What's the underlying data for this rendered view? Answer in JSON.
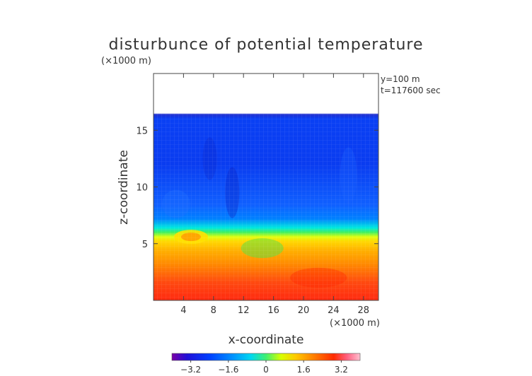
{
  "chart_data": {
    "type": "heatmap",
    "title": "disturbunce of potential temperature",
    "xlabel": "x-coordinate",
    "ylabel": "z-coordinate",
    "x_unit": "(×1000 m)",
    "z_unit": "(×1000 m)",
    "annotations": [
      "y=100 m",
      "t=117600 sec"
    ],
    "xlim": [
      0,
      30
    ],
    "ylim": [
      0,
      20
    ],
    "x_ticks": [
      4,
      8,
      12,
      16,
      20,
      24,
      28
    ],
    "y_ticks": [
      5,
      10,
      15
    ],
    "data_top_km": 16.5,
    "colorbar": {
      "range": [
        -4,
        4
      ],
      "ticks": [
        "−3.2",
        "−1.6",
        "0",
        "1.6",
        "3.2"
      ],
      "tick_values": [
        -3.2,
        -1.6,
        0,
        1.6,
        3.2
      ],
      "colors": [
        "#7a00a6",
        "#1a10e0",
        "#0040ff",
        "#0090ff",
        "#00d0ff",
        "#30f0a0",
        "#60ff30",
        "#e8ff00",
        "#ffc800",
        "#ff7a00",
        "#ff2a00",
        "#ff6080",
        "#ffb0c8"
      ]
    },
    "layers": [
      {
        "z_range": [
          0,
          2
        ],
        "value": 2.8
      },
      {
        "z_range": [
          2,
          5.2
        ],
        "value": 1.9
      },
      {
        "z_range": [
          5.2,
          6.0
        ],
        "value": 0.0
      },
      {
        "z_range": [
          6.0,
          8.0
        ],
        "value": -1.6
      },
      {
        "z_range": [
          8.0,
          16.5
        ],
        "value": -2.7
      }
    ]
  }
}
